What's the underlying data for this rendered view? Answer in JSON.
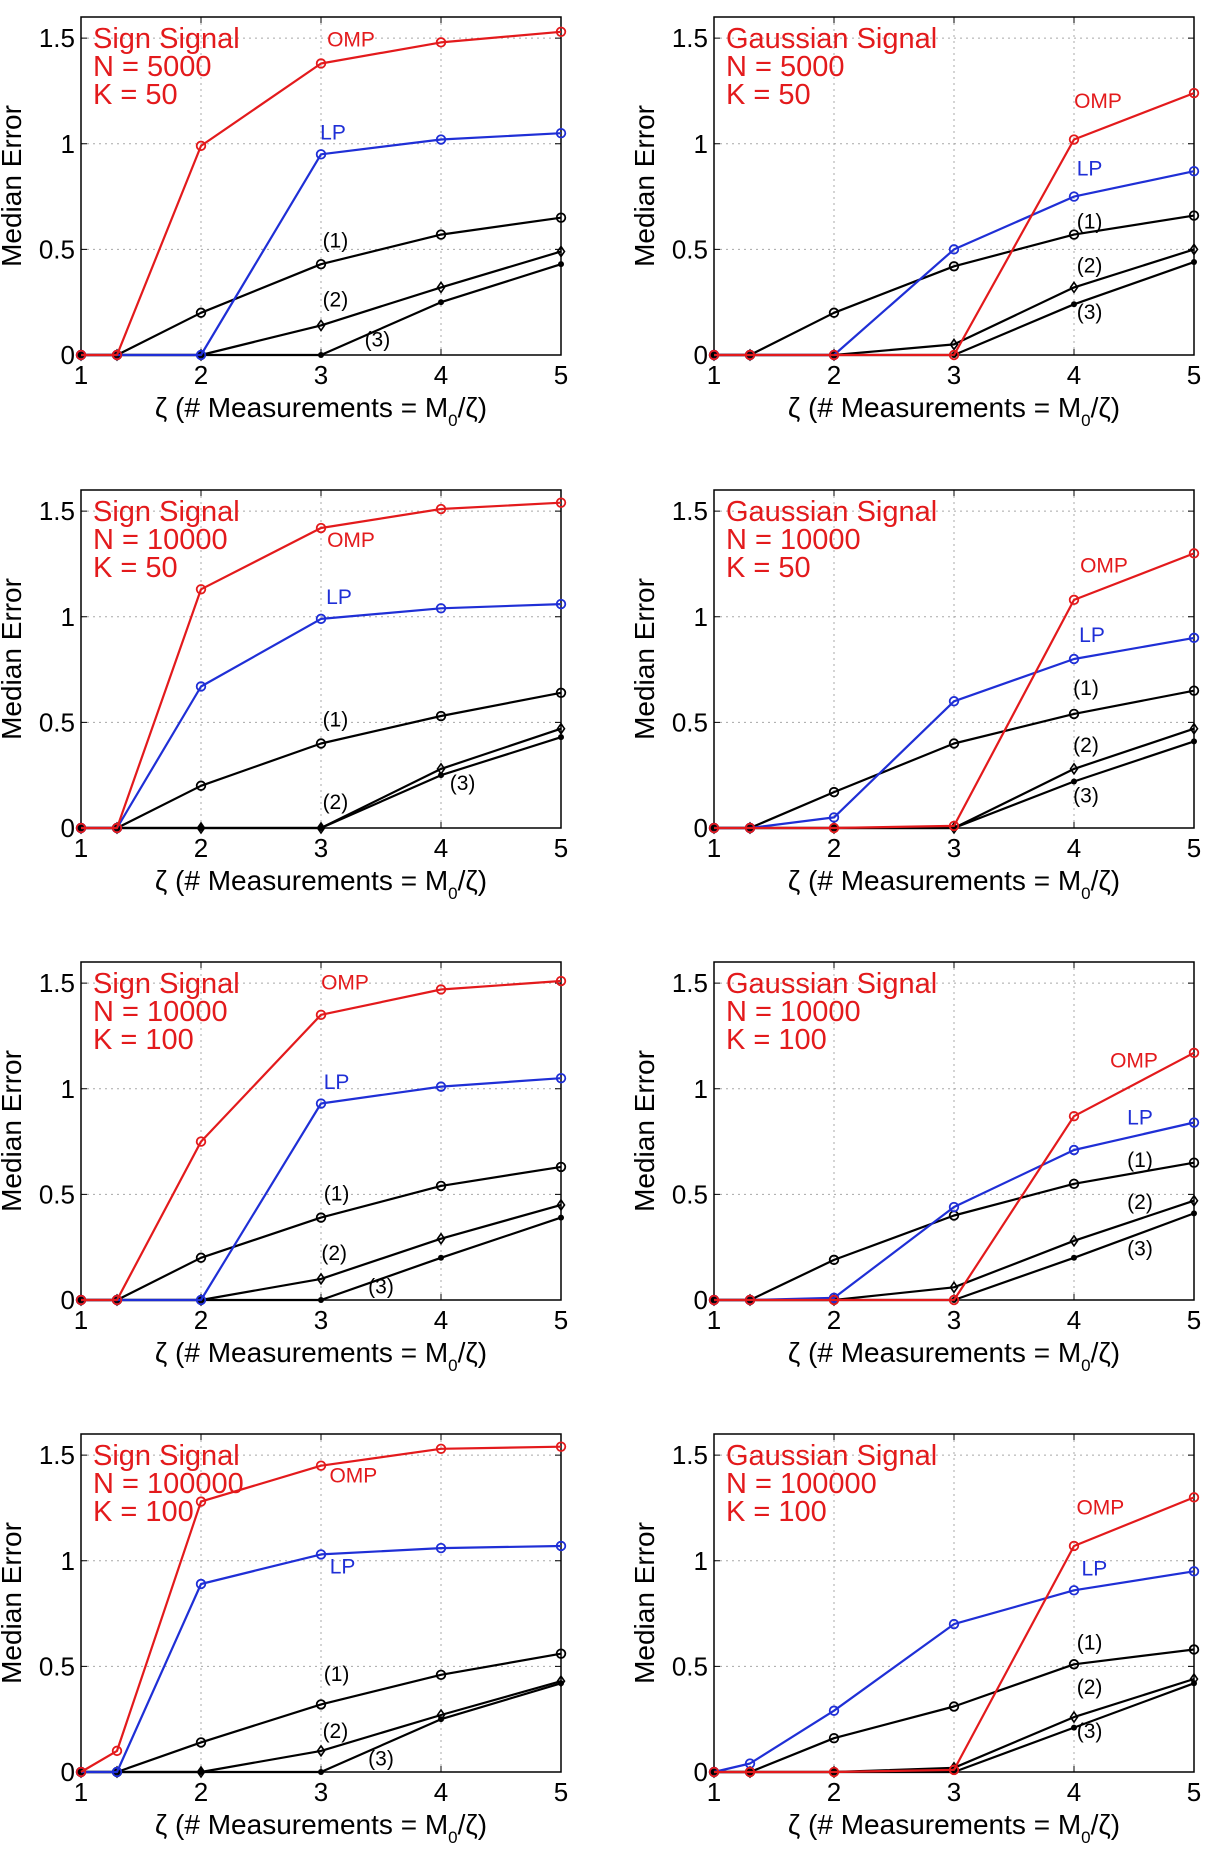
{
  "colors": {
    "OMP": "#e31a1c",
    "LP": "#1f2fd6",
    "black": "#000000"
  },
  "chart_data": [
    {
      "type": "line",
      "info": [
        "Sign Signal",
        "N = 5000",
        "K = 50"
      ],
      "xlabel": "ζ (# Measurements = M0/ζ)",
      "ylabel": "Median Error",
      "xlim": [
        1,
        5
      ],
      "ylim": [
        0,
        1.6
      ],
      "xticks": [
        "1",
        "2",
        "3",
        "4",
        "5"
      ],
      "yticks": [
        "0",
        "0.5",
        "1",
        "1.5"
      ],
      "grid": true,
      "x": [
        1,
        1.3,
        2,
        3,
        4,
        5
      ],
      "series": [
        {
          "name": "OMP",
          "color": "#e31a1c",
          "marker": "circle",
          "values": [
            0,
            0,
            0.99,
            1.38,
            1.48,
            1.53
          ]
        },
        {
          "name": "LP",
          "color": "#1f2fd6",
          "marker": "circle",
          "values": [
            0,
            0,
            0,
            0.95,
            1.02,
            1.05
          ]
        },
        {
          "name": "(1)",
          "color": "#000000",
          "marker": "circle",
          "values": [
            0,
            0,
            0.2,
            0.43,
            0.57,
            0.65
          ]
        },
        {
          "name": "(2)",
          "color": "#000000",
          "marker": "diamond",
          "values": [
            0,
            0,
            0,
            0.14,
            0.32,
            0.49
          ]
        },
        {
          "name": "(3)",
          "color": "#000000",
          "marker": "dot",
          "values": [
            0,
            0,
            0,
            0,
            0.25,
            0.43
          ]
        }
      ],
      "labels": [
        {
          "text": "OMP",
          "color": "#e31a1c",
          "x": 3.25,
          "y": 1.46
        },
        {
          "text": "LP",
          "color": "#1f2fd6",
          "x": 3.1,
          "y": 1.02
        },
        {
          "text": "(1)",
          "color": "#000000",
          "x": 3.12,
          "y": 0.51
        },
        {
          "text": "(2)",
          "color": "#000000",
          "x": 3.12,
          "y": 0.23
        },
        {
          "text": "(3)",
          "color": "#000000",
          "x": 3.47,
          "y": 0.04
        }
      ]
    },
    {
      "type": "line",
      "info": [
        "Gaussian Signal",
        "N = 5000",
        "K = 50"
      ],
      "xlabel": "ζ (# Measurements = M0/ζ)",
      "ylabel": "Median Error",
      "xlim": [
        1,
        5
      ],
      "ylim": [
        0,
        1.6
      ],
      "xticks": [
        "1",
        "2",
        "3",
        "4",
        "5"
      ],
      "yticks": [
        "0",
        "0.5",
        "1",
        "1.5"
      ],
      "grid": true,
      "x": [
        1,
        1.3,
        2,
        3,
        4,
        5
      ],
      "series": [
        {
          "name": "OMP",
          "color": "#e31a1c",
          "marker": "circle",
          "values": [
            0,
            0,
            0,
            0,
            1.02,
            1.24
          ]
        },
        {
          "name": "LP",
          "color": "#1f2fd6",
          "marker": "circle",
          "values": [
            0,
            0,
            0,
            0.5,
            0.75,
            0.87
          ]
        },
        {
          "name": "(1)",
          "color": "#000000",
          "marker": "circle",
          "values": [
            0,
            0,
            0.2,
            0.42,
            0.57,
            0.66
          ]
        },
        {
          "name": "(2)",
          "color": "#000000",
          "marker": "diamond",
          "values": [
            0,
            0,
            0,
            0.05,
            0.32,
            0.5
          ]
        },
        {
          "name": "(3)",
          "color": "#000000",
          "marker": "dot",
          "values": [
            0,
            0,
            0,
            0,
            0.24,
            0.44
          ]
        }
      ],
      "labels": [
        {
          "text": "OMP",
          "color": "#e31a1c",
          "x": 4.2,
          "y": 1.17
        },
        {
          "text": "LP",
          "color": "#1f2fd6",
          "x": 4.13,
          "y": 0.85
        },
        {
          "text": "(1)",
          "color": "#000000",
          "x": 4.13,
          "y": 0.6
        },
        {
          "text": "(2)",
          "color": "#000000",
          "x": 4.13,
          "y": 0.39
        },
        {
          "text": "(3)",
          "color": "#000000",
          "x": 4.13,
          "y": 0.17
        }
      ]
    },
    {
      "type": "line",
      "info": [
        "Sign Signal",
        "N = 10000",
        "K = 50"
      ],
      "xlabel": "ζ (# Measurements = M0/ζ)",
      "ylabel": "Median Error",
      "xlim": [
        1,
        5
      ],
      "ylim": [
        0,
        1.6
      ],
      "xticks": [
        "1",
        "2",
        "3",
        "4",
        "5"
      ],
      "yticks": [
        "0",
        "0.5",
        "1",
        "1.5"
      ],
      "grid": true,
      "x": [
        1,
        1.3,
        2,
        3,
        4,
        5
      ],
      "series": [
        {
          "name": "OMP",
          "color": "#e31a1c",
          "marker": "circle",
          "values": [
            0,
            0,
            1.13,
            1.42,
            1.51,
            1.54
          ]
        },
        {
          "name": "LP",
          "color": "#1f2fd6",
          "marker": "circle",
          "values": [
            0,
            0,
            0.67,
            0.99,
            1.04,
            1.06
          ]
        },
        {
          "name": "(1)",
          "color": "#000000",
          "marker": "circle",
          "values": [
            0,
            0,
            0.2,
            0.4,
            0.53,
            0.64
          ]
        },
        {
          "name": "(2)",
          "color": "#000000",
          "marker": "diamond",
          "values": [
            0,
            0,
            0,
            0,
            0.28,
            0.47
          ]
        },
        {
          "name": "(3)",
          "color": "#000000",
          "marker": "dot",
          "values": [
            0,
            0,
            0,
            0,
            0.25,
            0.43
          ]
        }
      ],
      "labels": [
        {
          "text": "OMP",
          "color": "#e31a1c",
          "x": 3.25,
          "y": 1.33
        },
        {
          "text": "LP",
          "color": "#1f2fd6",
          "x": 3.15,
          "y": 1.06
        },
        {
          "text": "(1)",
          "color": "#000000",
          "x": 3.12,
          "y": 0.48
        },
        {
          "text": "(2)",
          "color": "#000000",
          "x": 3.12,
          "y": 0.09
        },
        {
          "text": "(3)",
          "color": "#000000",
          "x": 4.18,
          "y": 0.18
        }
      ]
    },
    {
      "type": "line",
      "info": [
        "Gaussian Signal",
        "N = 10000",
        "K = 50"
      ],
      "xlabel": "ζ (# Measurements = M0/ζ)",
      "ylabel": "Median Error",
      "xlim": [
        1,
        5
      ],
      "ylim": [
        0,
        1.6
      ],
      "xticks": [
        "1",
        "2",
        "3",
        "4",
        "5"
      ],
      "yticks": [
        "0",
        "0.5",
        "1",
        "1.5"
      ],
      "grid": true,
      "x": [
        1,
        1.3,
        2,
        3,
        4,
        5
      ],
      "series": [
        {
          "name": "OMP",
          "color": "#e31a1c",
          "marker": "circle",
          "values": [
            0,
            0,
            0,
            0.01,
            1.08,
            1.3
          ]
        },
        {
          "name": "LP",
          "color": "#1f2fd6",
          "marker": "circle",
          "values": [
            0,
            0,
            0.05,
            0.6,
            0.8,
            0.9
          ]
        },
        {
          "name": "(1)",
          "color": "#000000",
          "marker": "circle",
          "values": [
            0,
            0,
            0.17,
            0.4,
            0.54,
            0.65
          ]
        },
        {
          "name": "(2)",
          "color": "#000000",
          "marker": "diamond",
          "values": [
            0,
            0,
            0,
            0,
            0.28,
            0.47
          ]
        },
        {
          "name": "(3)",
          "color": "#000000",
          "marker": "dot",
          "values": [
            0,
            0,
            0,
            0,
            0.22,
            0.41
          ]
        }
      ],
      "labels": [
        {
          "text": "OMP",
          "color": "#e31a1c",
          "x": 4.25,
          "y": 1.21
        },
        {
          "text": "LP",
          "color": "#1f2fd6",
          "x": 4.15,
          "y": 0.88
        },
        {
          "text": "(1)",
          "color": "#000000",
          "x": 4.1,
          "y": 0.63
        },
        {
          "text": "(2)",
          "color": "#000000",
          "x": 4.1,
          "y": 0.36
        },
        {
          "text": "(3)",
          "color": "#000000",
          "x": 4.1,
          "y": 0.12
        }
      ]
    },
    {
      "type": "line",
      "info": [
        "Sign Signal",
        "N = 10000",
        "K = 100"
      ],
      "xlabel": "ζ (# Measurements = M0/ζ)",
      "ylabel": "Median Error",
      "xlim": [
        1,
        5
      ],
      "ylim": [
        0,
        1.6
      ],
      "xticks": [
        "1",
        "2",
        "3",
        "4",
        "5"
      ],
      "yticks": [
        "0",
        "0.5",
        "1",
        "1.5"
      ],
      "grid": true,
      "x": [
        1,
        1.3,
        2,
        3,
        4,
        5
      ],
      "series": [
        {
          "name": "OMP",
          "color": "#e31a1c",
          "marker": "circle",
          "values": [
            0,
            0,
            0.75,
            1.35,
            1.47,
            1.51
          ]
        },
        {
          "name": "LP",
          "color": "#1f2fd6",
          "marker": "circle",
          "values": [
            0,
            0,
            0,
            0.93,
            1.01,
            1.05
          ]
        },
        {
          "name": "(1)",
          "color": "#000000",
          "marker": "circle",
          "values": [
            0,
            0,
            0.2,
            0.39,
            0.54,
            0.63
          ]
        },
        {
          "name": "(2)",
          "color": "#000000",
          "marker": "diamond",
          "values": [
            0,
            0,
            0,
            0.1,
            0.29,
            0.45
          ]
        },
        {
          "name": "(3)",
          "color": "#000000",
          "marker": "dot",
          "values": [
            0,
            0,
            0,
            0,
            0.2,
            0.39
          ]
        }
      ],
      "labels": [
        {
          "text": "OMP",
          "color": "#e31a1c",
          "x": 3.2,
          "y": 1.47
        },
        {
          "text": "LP",
          "color": "#1f2fd6",
          "x": 3.13,
          "y": 1.0
        },
        {
          "text": "(1)",
          "color": "#000000",
          "x": 3.13,
          "y": 0.47
        },
        {
          "text": "(2)",
          "color": "#000000",
          "x": 3.11,
          "y": 0.19
        },
        {
          "text": "(3)",
          "color": "#000000",
          "x": 3.5,
          "y": 0.03
        }
      ]
    },
    {
      "type": "line",
      "info": [
        "Gaussian Signal",
        "N = 10000",
        "K = 100"
      ],
      "xlabel": "ζ (# Measurements = M0/ζ)",
      "ylabel": "Median Error",
      "xlim": [
        1,
        5
      ],
      "ylim": [
        0,
        1.6
      ],
      "xticks": [
        "1",
        "2",
        "3",
        "4",
        "5"
      ],
      "yticks": [
        "0",
        "0.5",
        "1",
        "1.5"
      ],
      "grid": true,
      "x": [
        1,
        1.3,
        2,
        3,
        4,
        5
      ],
      "series": [
        {
          "name": "OMP",
          "color": "#e31a1c",
          "marker": "circle",
          "values": [
            0,
            0,
            0,
            0,
            0.87,
            1.17
          ]
        },
        {
          "name": "LP",
          "color": "#1f2fd6",
          "marker": "circle",
          "values": [
            0,
            0,
            0.01,
            0.44,
            0.71,
            0.84
          ]
        },
        {
          "name": "(1)",
          "color": "#000000",
          "marker": "circle",
          "values": [
            0,
            0,
            0.19,
            0.4,
            0.55,
            0.65
          ]
        },
        {
          "name": "(2)",
          "color": "#000000",
          "marker": "diamond",
          "values": [
            0,
            0,
            0,
            0.06,
            0.28,
            0.47
          ]
        },
        {
          "name": "(3)",
          "color": "#000000",
          "marker": "dot",
          "values": [
            0,
            0,
            0,
            0,
            0.2,
            0.41
          ]
        }
      ],
      "labels": [
        {
          "text": "OMP",
          "color": "#e31a1c",
          "x": 4.5,
          "y": 1.1
        },
        {
          "text": "LP",
          "color": "#1f2fd6",
          "x": 4.55,
          "y": 0.83
        },
        {
          "text": "(1)",
          "color": "#000000",
          "x": 4.55,
          "y": 0.63
        },
        {
          "text": "(2)",
          "color": "#000000",
          "x": 4.55,
          "y": 0.43
        },
        {
          "text": "(3)",
          "color": "#000000",
          "x": 4.55,
          "y": 0.21
        }
      ]
    },
    {
      "type": "line",
      "info": [
        "Sign Signal",
        "N = 100000",
        "K = 100"
      ],
      "xlabel": "ζ (# Measurements = M0/ζ)",
      "ylabel": "Median Error",
      "xlim": [
        1,
        5
      ],
      "ylim": [
        0,
        1.6
      ],
      "xticks": [
        "1",
        "2",
        "3",
        "4",
        "5"
      ],
      "yticks": [
        "0",
        "0.5",
        "1",
        "1.5"
      ],
      "grid": true,
      "x": [
        1,
        1.3,
        2,
        3,
        4,
        5
      ],
      "series": [
        {
          "name": "OMP",
          "color": "#e31a1c",
          "marker": "circle",
          "values": [
            0,
            0.1,
            1.28,
            1.45,
            1.53,
            1.54
          ]
        },
        {
          "name": "LP",
          "color": "#1f2fd6",
          "marker": "circle",
          "values": [
            0,
            0,
            0.89,
            1.03,
            1.06,
            1.07
          ]
        },
        {
          "name": "(1)",
          "color": "#000000",
          "marker": "circle",
          "values": [
            0,
            0,
            0.14,
            0.32,
            0.46,
            0.56
          ]
        },
        {
          "name": "(2)",
          "color": "#000000",
          "marker": "diamond",
          "values": [
            0,
            0,
            0,
            0.1,
            0.27,
            0.43
          ]
        },
        {
          "name": "(3)",
          "color": "#000000",
          "marker": "dot",
          "values": [
            0,
            0,
            0,
            0,
            0.25,
            0.42
          ]
        }
      ],
      "labels": [
        {
          "text": "OMP",
          "color": "#e31a1c",
          "x": 3.27,
          "y": 1.37
        },
        {
          "text": "LP",
          "color": "#1f2fd6",
          "x": 3.18,
          "y": 0.94
        },
        {
          "text": "(1)",
          "color": "#000000",
          "x": 3.13,
          "y": 0.43
        },
        {
          "text": "(2)",
          "color": "#000000",
          "x": 3.12,
          "y": 0.16
        },
        {
          "text": "(3)",
          "color": "#000000",
          "x": 3.5,
          "y": 0.03
        }
      ]
    },
    {
      "type": "line",
      "info": [
        "Gaussian Signal",
        "N = 100000",
        "K = 100"
      ],
      "xlabel": "ζ (# Measurements = M0/ζ)",
      "ylabel": "Median Error",
      "xlim": [
        1,
        5
      ],
      "ylim": [
        0,
        1.6
      ],
      "xticks": [
        "1",
        "2",
        "3",
        "4",
        "5"
      ],
      "yticks": [
        "0",
        "0.5",
        "1",
        "1.5"
      ],
      "grid": true,
      "x": [
        1,
        1.3,
        2,
        3,
        4,
        5
      ],
      "series": [
        {
          "name": "OMP",
          "color": "#e31a1c",
          "marker": "circle",
          "values": [
            0,
            0,
            0,
            0.01,
            1.07,
            1.3
          ]
        },
        {
          "name": "LP",
          "color": "#1f2fd6",
          "marker": "circle",
          "values": [
            0,
            0.04,
            0.29,
            0.7,
            0.86,
            0.95
          ]
        },
        {
          "name": "(1)",
          "color": "#000000",
          "marker": "circle",
          "values": [
            0,
            0,
            0.16,
            0.31,
            0.51,
            0.58
          ]
        },
        {
          "name": "(2)",
          "color": "#000000",
          "marker": "diamond",
          "values": [
            0,
            0,
            0,
            0.02,
            0.26,
            0.44
          ]
        },
        {
          "name": "(3)",
          "color": "#000000",
          "marker": "dot",
          "values": [
            0,
            0,
            0,
            0,
            0.21,
            0.42
          ]
        }
      ],
      "labels": [
        {
          "text": "OMP",
          "color": "#e31a1c",
          "x": 4.22,
          "y": 1.22
        },
        {
          "text": "LP",
          "color": "#1f2fd6",
          "x": 4.17,
          "y": 0.93
        },
        {
          "text": "(1)",
          "color": "#000000",
          "x": 4.13,
          "y": 0.58
        },
        {
          "text": "(2)",
          "color": "#000000",
          "x": 4.13,
          "y": 0.37
        },
        {
          "text": "(3)",
          "color": "#000000",
          "x": 4.13,
          "y": 0.16
        }
      ]
    }
  ]
}
